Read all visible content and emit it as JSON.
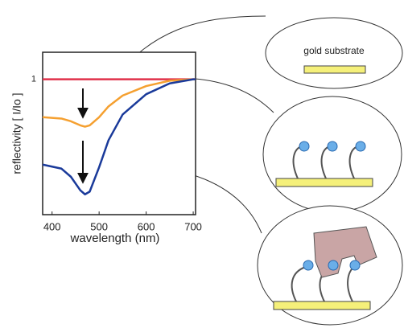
{
  "chart_data": {
    "type": "line",
    "x": [
      380,
      420,
      440,
      460,
      470,
      480,
      500,
      520,
      550,
      600,
      650,
      700,
      705
    ],
    "series": [
      {
        "color": "#e0304a",
        "values": [
          1,
          1,
          1,
          1,
          1,
          1,
          1,
          1,
          1,
          1,
          1,
          1,
          1
        ]
      },
      {
        "color": "#f5a030",
        "values": [
          0.72,
          0.71,
          0.69,
          0.66,
          0.65,
          0.66,
          0.72,
          0.8,
          0.88,
          0.95,
          0.99,
          1,
          1
        ]
      },
      {
        "color": "#1a3a9a",
        "values": [
          0.37,
          0.34,
          0.28,
          0.18,
          0.15,
          0.17,
          0.35,
          0.55,
          0.74,
          0.89,
          0.97,
          1,
          1
        ]
      }
    ],
    "xlim": [
      380,
      705
    ],
    "xticks": [
      400,
      500,
      600,
      700
    ],
    "ylim": [
      0,
      1.2
    ],
    "yticks": [
      1
    ],
    "xlabel": "wavelength (nm)",
    "ylabel": "reflectivity [ I/Io ]",
    "annotation": "gold substrate",
    "grid": false
  }
}
